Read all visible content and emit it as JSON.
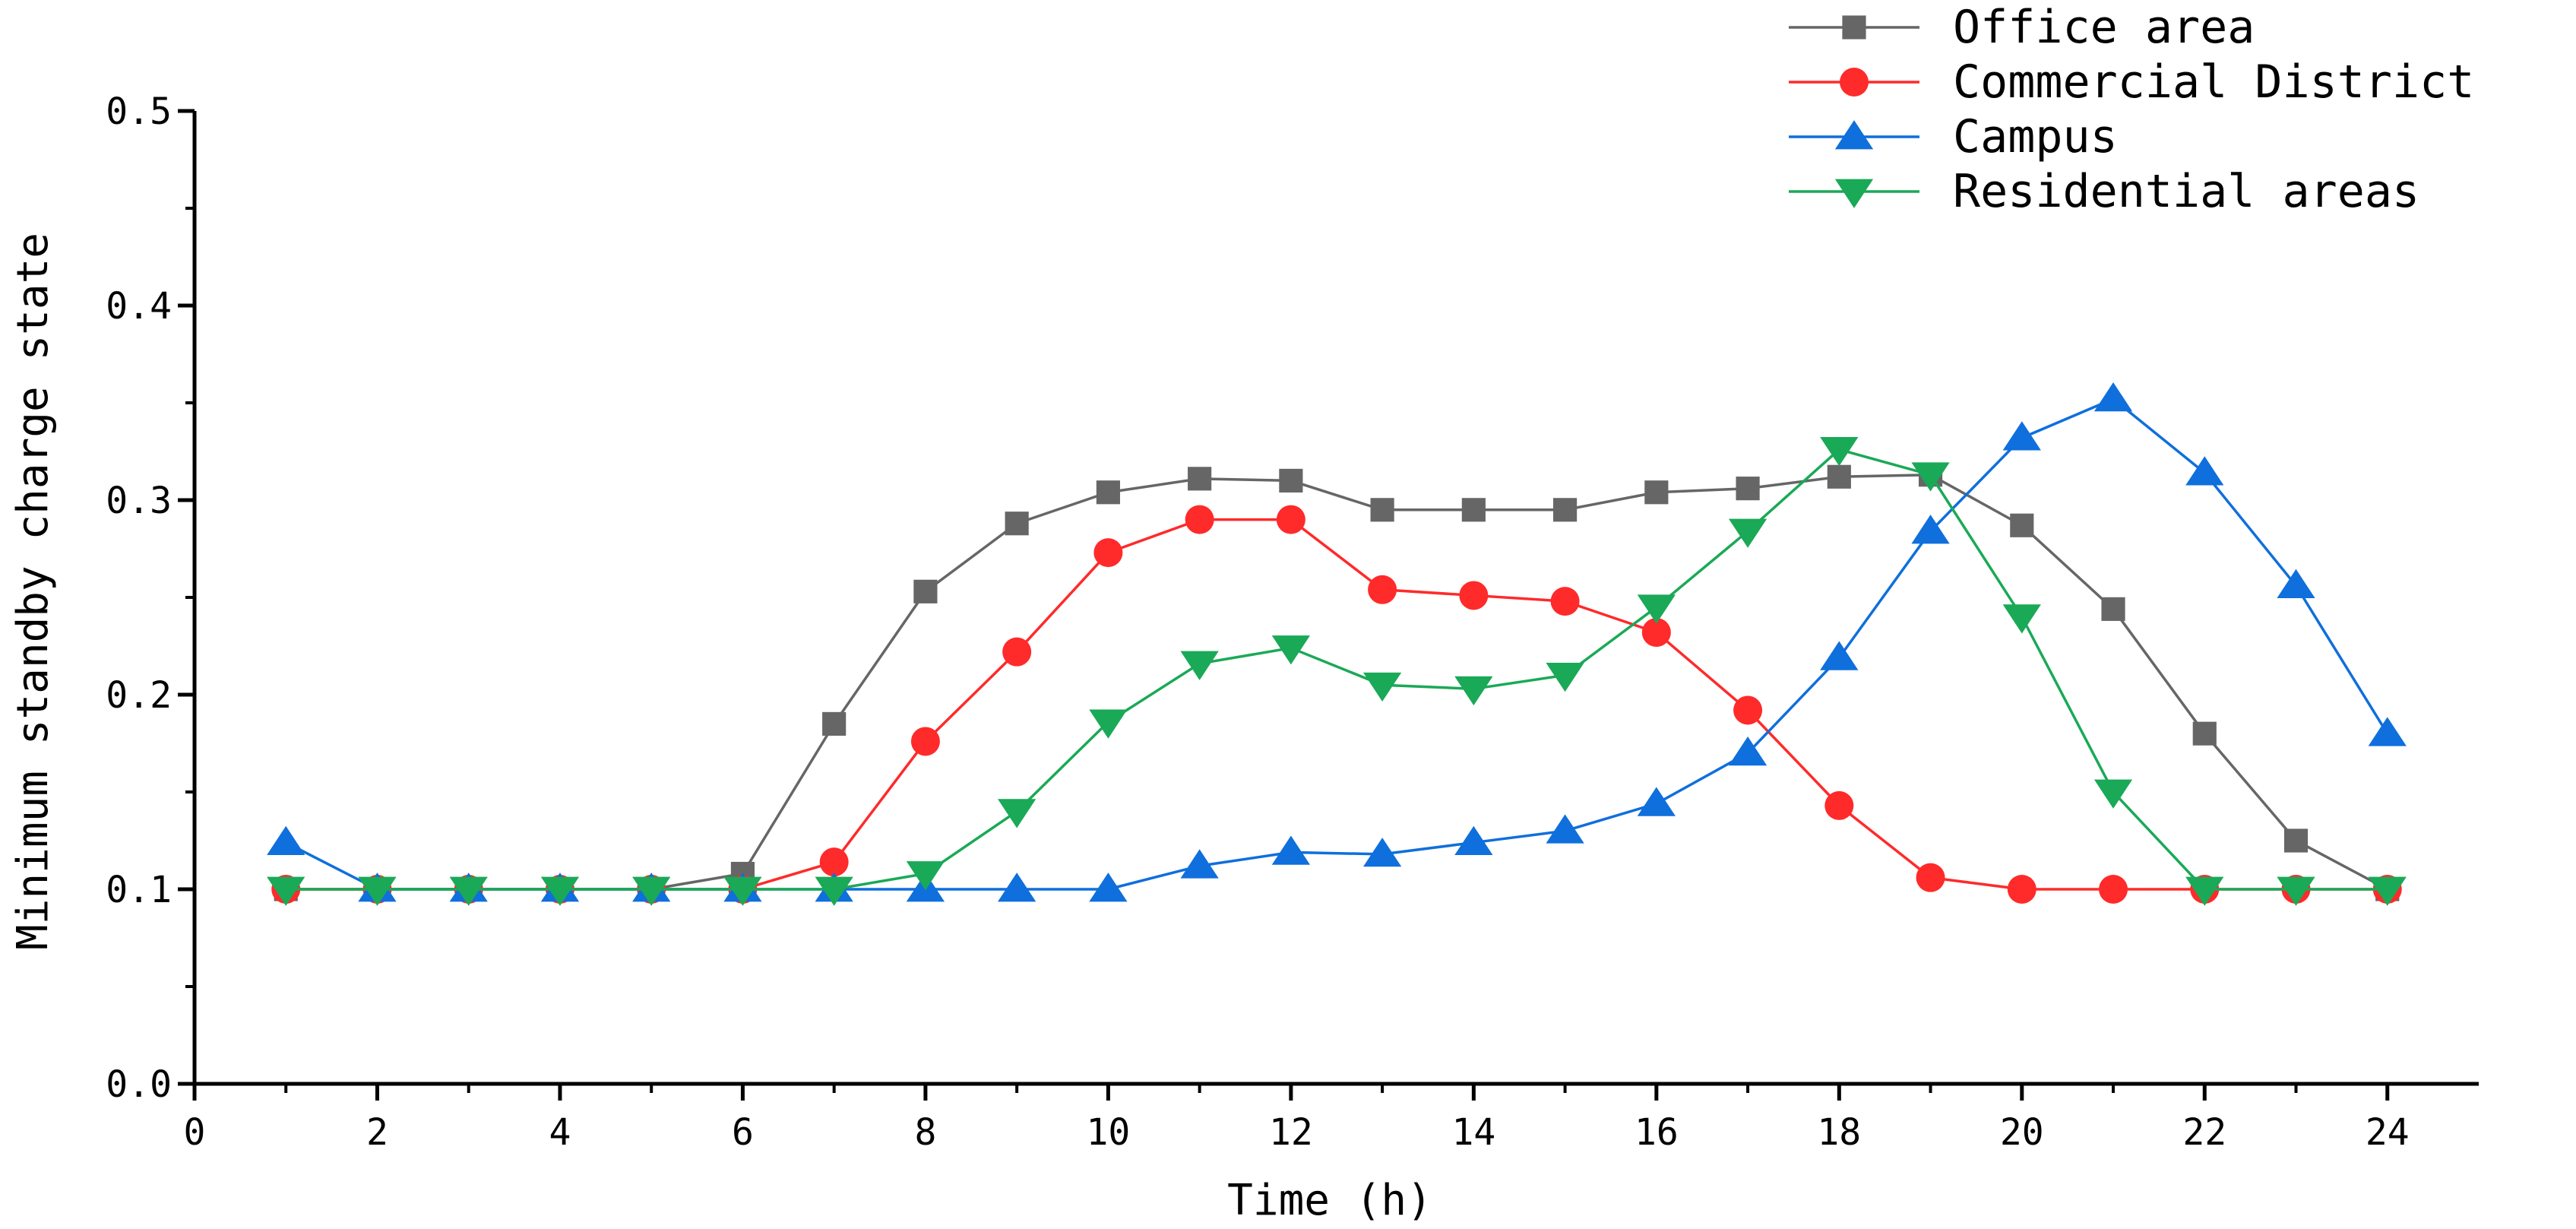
{
  "chart_data": {
    "type": "line",
    "title": "",
    "xlabel": "Time (h)",
    "ylabel": "Minimum standby charge state",
    "xlim": [
      0,
      25
    ],
    "ylim": [
      0.0,
      0.5
    ],
    "x_ticks": [
      0,
      2,
      4,
      6,
      8,
      10,
      12,
      14,
      16,
      18,
      20,
      22,
      24
    ],
    "y_ticks": [
      0.0,
      0.1,
      0.2,
      0.3,
      0.4,
      0.5
    ],
    "x_tick_labels": [
      "0",
      "2",
      "4",
      "6",
      "8",
      "10",
      "12",
      "14",
      "16",
      "18",
      "20",
      "22",
      "24"
    ],
    "y_tick_labels": [
      "0.0",
      "0.1",
      "0.2",
      "0.3",
      "0.4",
      "0.5"
    ],
    "legend_position": "top-right",
    "grid": false,
    "x": [
      1,
      2,
      3,
      4,
      5,
      6,
      7,
      8,
      9,
      10,
      11,
      12,
      13,
      14,
      15,
      16,
      17,
      18,
      19,
      20,
      21,
      22,
      23,
      24
    ],
    "series": [
      {
        "name": "Office area",
        "color": "#666666",
        "marker": "square",
        "values": [
          0.1,
          0.1,
          0.1,
          0.1,
          0.1,
          0.108,
          0.185,
          0.253,
          0.288,
          0.304,
          0.311,
          0.31,
          0.295,
          0.295,
          0.295,
          0.304,
          0.306,
          0.312,
          0.313,
          0.287,
          0.244,
          0.18,
          0.125,
          0.1
        ]
      },
      {
        "name": "Commercial District",
        "color": "#ff2a2a",
        "marker": "circle",
        "values": [
          0.1,
          0.1,
          0.1,
          0.1,
          0.1,
          0.1,
          0.114,
          0.176,
          0.222,
          0.273,
          0.29,
          0.29,
          0.254,
          0.251,
          0.248,
          0.232,
          0.192,
          0.143,
          0.106,
          0.1,
          0.1,
          0.1,
          0.1,
          0.1
        ]
      },
      {
        "name": "Campus",
        "color": "#0f6fdc",
        "marker": "triangle-up",
        "values": [
          0.124,
          0.1,
          0.1,
          0.1,
          0.1,
          0.1,
          0.1,
          0.1,
          0.1,
          0.1,
          0.112,
          0.119,
          0.118,
          0.124,
          0.13,
          0.144,
          0.17,
          0.219,
          0.284,
          0.332,
          0.352,
          0.314,
          0.256,
          0.18
        ]
      },
      {
        "name": "Residential areas",
        "color": "#1aa957",
        "marker": "triangle-down",
        "values": [
          0.1,
          0.1,
          0.1,
          0.1,
          0.1,
          0.1,
          0.1,
          0.108,
          0.14,
          0.186,
          0.216,
          0.224,
          0.205,
          0.203,
          0.21,
          0.245,
          0.284,
          0.326,
          0.313,
          0.24,
          0.15,
          0.1,
          0.1,
          0.1
        ]
      }
    ]
  }
}
